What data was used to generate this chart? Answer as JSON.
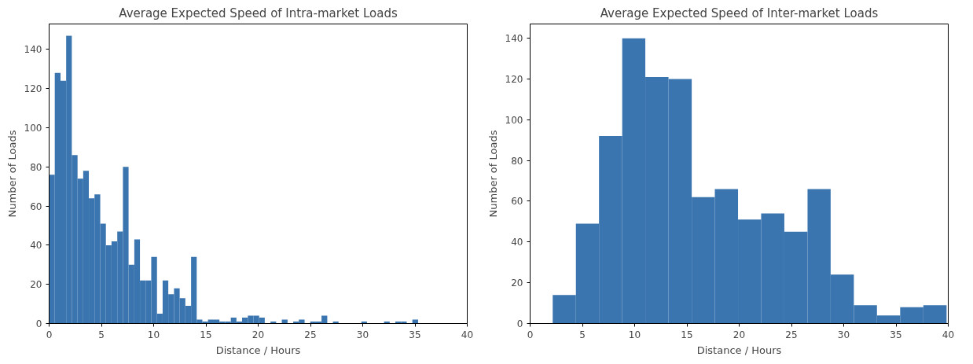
{
  "chart_data": [
    {
      "type": "histogram",
      "title": "Average Expected Speed of Intra-market Loads",
      "xlabel": "Distance / Hours",
      "ylabel": "Number of Loads",
      "color": "#3b75af",
      "bins": [
        0,
        0.54,
        1.09,
        1.63,
        2.17,
        2.72,
        3.26,
        3.8,
        4.34,
        4.89,
        5.43,
        5.97,
        6.52,
        7.06,
        7.6,
        8.15,
        8.69,
        9.23,
        9.77,
        10.32,
        10.86,
        11.4,
        11.95,
        12.49,
        13.03,
        13.58,
        14.12,
        14.66,
        15.2,
        15.75,
        16.29,
        16.83,
        17.38,
        17.92,
        18.46,
        19.01,
        19.55,
        20.09,
        20.63,
        21.18,
        21.72,
        22.26,
        22.81,
        23.35,
        23.89,
        24.44,
        24.98,
        25.52,
        26.06,
        26.61,
        27.15,
        27.69,
        28.24,
        28.78,
        29.32,
        29.87,
        30.41,
        30.95,
        31.49,
        32.04,
        32.58,
        33.12,
        33.67,
        34.21,
        34.75,
        35.3
      ],
      "values": [
        76,
        128,
        124,
        147,
        86,
        74,
        78,
        64,
        66,
        51,
        40,
        42,
        47,
        80,
        30,
        43,
        22,
        22,
        34,
        5,
        22,
        15,
        18,
        13,
        9,
        34,
        2,
        1,
        2,
        2,
        1,
        1,
        3,
        1,
        3,
        4,
        4,
        3,
        0,
        1,
        0,
        2,
        0,
        1,
        2,
        0,
        1,
        1,
        4,
        0,
        1,
        0,
        0,
        0,
        0,
        1,
        0,
        0,
        0,
        1,
        0,
        1,
        1,
        0,
        2
      ],
      "xlim": [
        0,
        40
      ],
      "ylim": [
        0,
        153
      ],
      "xticks": [
        0,
        5,
        10,
        15,
        20,
        25,
        30,
        35,
        40
      ],
      "yticks": [
        0,
        20,
        40,
        60,
        80,
        100,
        120,
        140
      ]
    },
    {
      "type": "histogram",
      "title": "Average Expected Speed of Inter-market Loads",
      "xlabel": "Distance / Hours",
      "ylabel": "Number of Loads",
      "color": "#3b75af",
      "bins": [
        2.16,
        4.38,
        6.59,
        8.81,
        11.02,
        13.24,
        15.46,
        17.67,
        19.89,
        22.1,
        24.32,
        26.54,
        28.75,
        30.97,
        33.18,
        35.4,
        37.62,
        39.84
      ],
      "values": [
        14,
        49,
        92,
        140,
        121,
        120,
        62,
        66,
        51,
        54,
        45,
        66,
        24,
        9,
        4,
        8,
        9
      ],
      "xlim": [
        0,
        40
      ],
      "ylim": [
        0,
        147
      ],
      "xticks": [
        0,
        5,
        10,
        15,
        20,
        25,
        30,
        35,
        40
      ],
      "yticks": [
        0,
        20,
        40,
        60,
        80,
        100,
        120,
        140
      ]
    }
  ]
}
